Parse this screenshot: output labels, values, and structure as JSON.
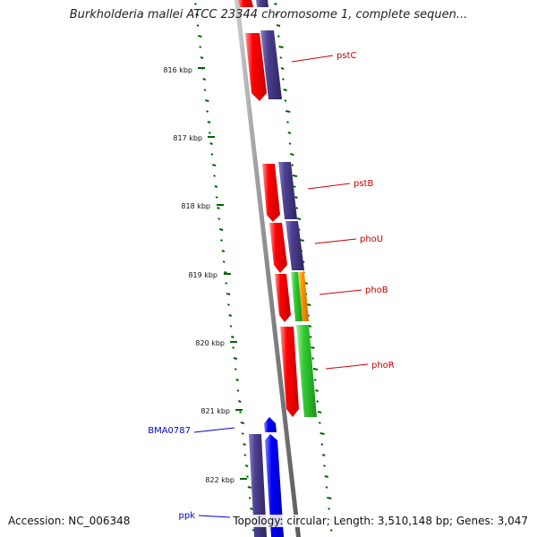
{
  "title": "Burkholderia mallei ATCC 23344 chromosome 1, complete sequen...",
  "footer": {
    "accession": "Accession: NC_006348",
    "topology": "Topology: circular; Length: 3,510,148 bp; Genes: 3,047"
  },
  "ruler": {
    "ticks": [
      "816 kbp",
      "817 kbp",
      "818 kbp",
      "819 kbp",
      "820 kbp",
      "821 kbp",
      "822 kbp"
    ]
  },
  "genes": [
    {
      "name": "pstC",
      "color": "#cc0000"
    },
    {
      "name": "pstB",
      "color": "#cc0000"
    },
    {
      "name": "phoU",
      "color": "#cc0000"
    },
    {
      "name": "phoB",
      "color": "#cc0000"
    },
    {
      "name": "phoR",
      "color": "#cc0000"
    },
    {
      "name": "BMA0787",
      "color": "#0000cc"
    },
    {
      "name": "ppk",
      "color": "#0000cc"
    }
  ],
  "colors": {
    "backbone": "#888888",
    "cds_red": "#ff0000",
    "cds_purple": "#4b3f8f",
    "cds_green": "#33cc33",
    "cds_orange": "#ff9900",
    "cds_blue": "#0000ff",
    "skew_dots": "#006600"
  }
}
